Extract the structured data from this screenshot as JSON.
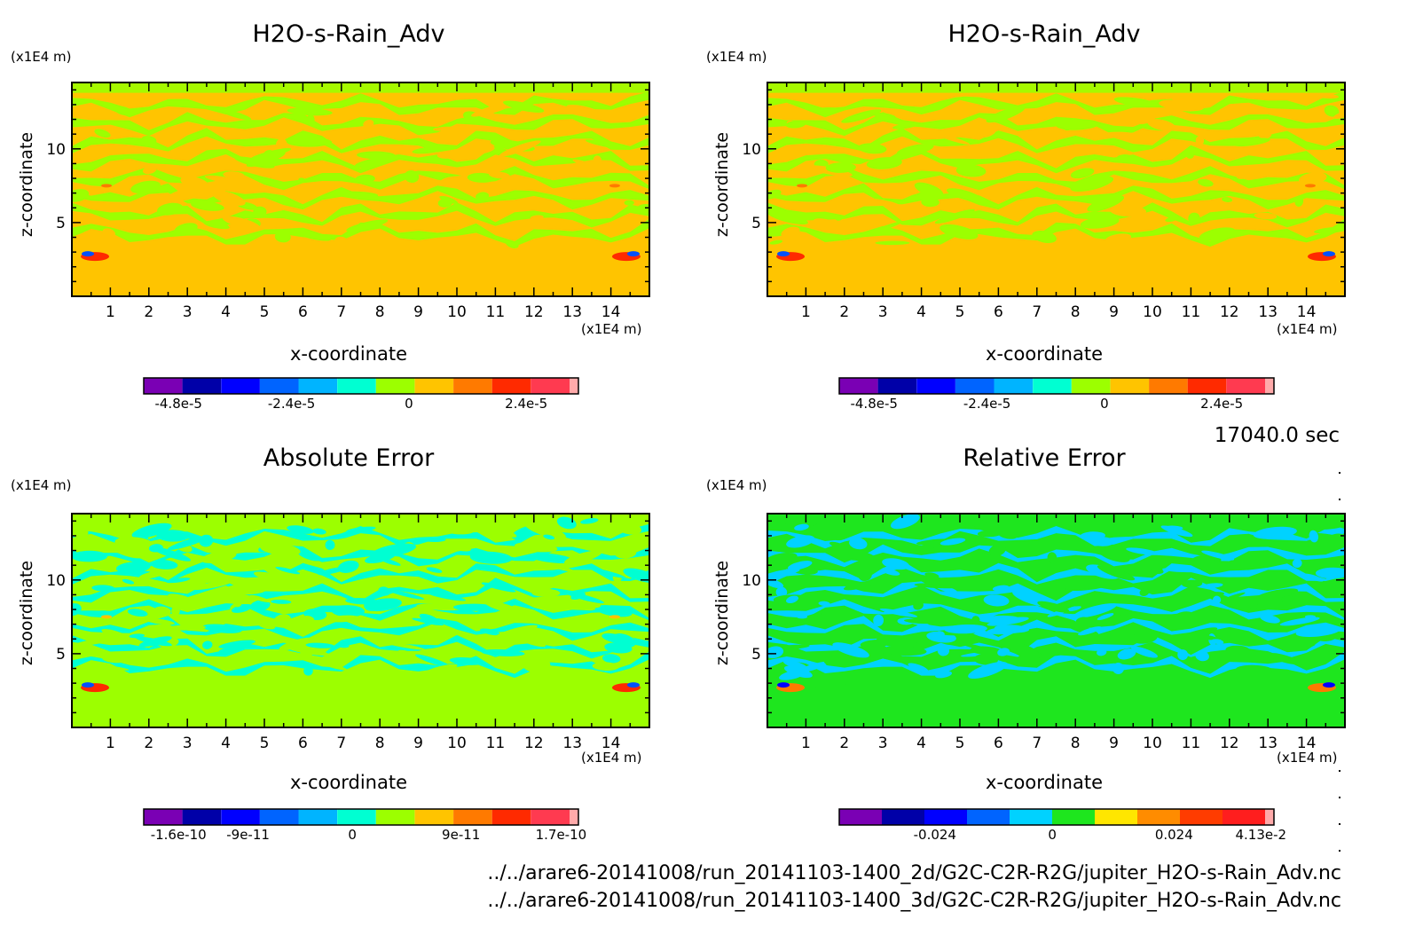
{
  "chart_data": [
    {
      "type": "heatmap",
      "title": "H2O-s-Rain_Adv",
      "xlabel": "x-coordinate",
      "ylabel": "z-coordinate",
      "x_unit": "(x1E4 m)",
      "y_unit": "(x1E4 m)",
      "xlim": [
        0,
        15
      ],
      "ylim": [
        0,
        14.5
      ],
      "x_ticks": [
        "1",
        "2",
        "3",
        "4",
        "5",
        "6",
        "7",
        "8",
        "9",
        "10",
        "11",
        "12",
        "13",
        "14"
      ],
      "y_ticks": [
        "5",
        "10"
      ],
      "pattern": "field",
      "base_color": "#ffc400",
      "alt_color": "#9cff00",
      "spot_colors": [
        "#ff2a00",
        "#0050ff",
        "#ff7a00"
      ],
      "colorbar": {
        "colors": [
          "#7a00b4",
          "#0000a8",
          "#0000ff",
          "#0064ff",
          "#00b4ff",
          "#00ffd2",
          "#9cff00",
          "#ffc400",
          "#ff7a00",
          "#ff2a00",
          "#ff3a50",
          "#ffaaaa"
        ],
        "tick_labels": [
          "-4.8e-5",
          "-2.4e-5",
          "0",
          "2.4e-5"
        ]
      }
    },
    {
      "type": "heatmap",
      "title": "H2O-s-Rain_Adv",
      "xlabel": "x-coordinate",
      "ylabel": "z-coordinate",
      "x_unit": "(x1E4 m)",
      "y_unit": "(x1E4 m)",
      "xlim": [
        0,
        15
      ],
      "ylim": [
        0,
        14.5
      ],
      "x_ticks": [
        "1",
        "2",
        "3",
        "4",
        "5",
        "6",
        "7",
        "8",
        "9",
        "10",
        "11",
        "12",
        "13",
        "14"
      ],
      "y_ticks": [
        "5",
        "10"
      ],
      "pattern": "field",
      "base_color": "#ffc400",
      "alt_color": "#9cff00",
      "spot_colors": [
        "#ff2a00",
        "#0050ff",
        "#ff7a00"
      ],
      "colorbar": {
        "colors": [
          "#7a00b4",
          "#0000a8",
          "#0000ff",
          "#0064ff",
          "#00b4ff",
          "#00ffd2",
          "#9cff00",
          "#ffc400",
          "#ff7a00",
          "#ff2a00",
          "#ff3a50",
          "#ffaaaa"
        ],
        "tick_labels": [
          "-4.8e-5",
          "-2.4e-5",
          "0",
          "2.4e-5"
        ]
      }
    },
    {
      "type": "heatmap",
      "title": "Absolute Error",
      "xlabel": "x-coordinate",
      "ylabel": "z-coordinate",
      "x_unit": "(x1E4 m)",
      "y_unit": "(x1E4 m)",
      "xlim": [
        0,
        15
      ],
      "ylim": [
        0,
        14.5
      ],
      "x_ticks": [
        "1",
        "2",
        "3",
        "4",
        "5",
        "6",
        "7",
        "8",
        "9",
        "10",
        "11",
        "12",
        "13",
        "14"
      ],
      "y_ticks": [
        "5",
        "10"
      ],
      "pattern": "error",
      "base_color": "#9cff00",
      "alt_color": "#00ffd2",
      "spot_colors": [
        "#ff2a00",
        "#0050ff",
        "#ffc400"
      ],
      "colorbar": {
        "colors": [
          "#7a00b4",
          "#0000a8",
          "#0000ff",
          "#0064ff",
          "#00b4ff",
          "#00ffd2",
          "#9cff00",
          "#ffc400",
          "#ff7a00",
          "#ff2a00",
          "#ff3a50",
          "#ffaaaa"
        ],
        "tick_labels": [
          "-1.6e-10",
          "-9e-11",
          "0",
          "9e-11",
          "1.7e-10"
        ]
      }
    },
    {
      "type": "heatmap",
      "title": "Relative Error",
      "xlabel": "x-coordinate",
      "ylabel": "z-coordinate",
      "x_unit": "(x1E4 m)",
      "y_unit": "(x1E4 m)",
      "xlim": [
        0,
        15
      ],
      "ylim": [
        0,
        14.5
      ],
      "x_ticks": [
        "1",
        "2",
        "3",
        "4",
        "5",
        "6",
        "7",
        "8",
        "9",
        "10",
        "11",
        "12",
        "13",
        "14"
      ],
      "y_ticks": [
        "5",
        "10"
      ],
      "pattern": "error",
      "base_color": "#1ee61e",
      "alt_color": "#00d2ff",
      "spot_colors": [
        "#ff7a00",
        "#0000ff",
        "#00d2ff"
      ],
      "colorbar": {
        "colors": [
          "#7a00b4",
          "#0000a8",
          "#0000ff",
          "#0064ff",
          "#00d2ff",
          "#1ee61e",
          "#ffe600",
          "#ff8c00",
          "#ff3c00",
          "#ff1e1e",
          "#ffaaaa"
        ],
        "tick_labels": [
          "-0.024",
          "0",
          "0.024",
          "4.13e-2"
        ]
      }
    }
  ],
  "time_label": "17040.0 sec",
  "file_paths": [
    "../../arare6-20141008/run_20141103-1400_2d/G2C-C2R-R2G/jupiter_H2O-s-Rain_Adv.nc",
    "../../arare6-20141008/run_20141103-1400_3d/G2C-C2R-R2G/jupiter_H2O-s-Rain_Adv.nc"
  ]
}
